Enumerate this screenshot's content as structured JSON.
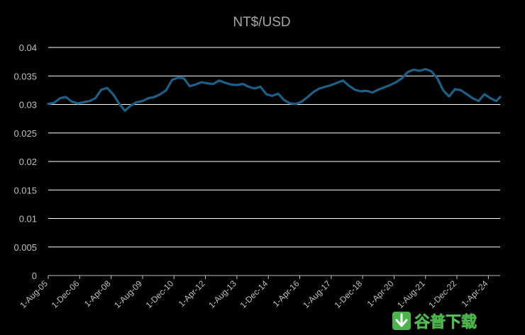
{
  "chart_data": {
    "type": "line",
    "title": "NT$/USD",
    "xlabel": "",
    "ylabel": "",
    "ylim": [
      0,
      0.04
    ],
    "yticks": [
      "0",
      "0.005",
      "0.01",
      "0.015",
      "0.02",
      "0.025",
      "0.03",
      "0.035",
      "0.04"
    ],
    "xticks": [
      "1-Aug-05",
      "1-Dec-06",
      "1-Apr-08",
      "1-Aug-09",
      "1-Dec-10",
      "1-Apr-12",
      "1-Aug-13",
      "1-Dec-14",
      "1-Apr-16",
      "1-Aug-17",
      "1-Dec-18",
      "1-Apr-20",
      "1-Aug-21",
      "1-Dec-22",
      "1-Apr-24"
    ],
    "grid": true,
    "legend": "none",
    "line_color": "#1f5f86",
    "series": [
      {
        "x": [
          "2005-08",
          "2005-11",
          "2006-02",
          "2006-05",
          "2006-08",
          "2006-11",
          "2007-02",
          "2007-05",
          "2007-08",
          "2007-11",
          "2008-02",
          "2008-05",
          "2008-08",
          "2008-11",
          "2009-02",
          "2009-05",
          "2009-08",
          "2009-11",
          "2010-02",
          "2010-05",
          "2010-08",
          "2010-11",
          "2011-02",
          "2011-05",
          "2011-08",
          "2011-11",
          "2012-02",
          "2012-05",
          "2012-08",
          "2012-11",
          "2013-02",
          "2013-05",
          "2013-08",
          "2013-11",
          "2014-02",
          "2014-05",
          "2014-08",
          "2014-11",
          "2015-02",
          "2015-05",
          "2015-08",
          "2015-11",
          "2016-02",
          "2016-05",
          "2016-08",
          "2016-11",
          "2017-02",
          "2017-05",
          "2017-08",
          "2017-11",
          "2018-02",
          "2018-05",
          "2018-08",
          "2018-11",
          "2019-02",
          "2019-05",
          "2019-08",
          "2019-11",
          "2020-02",
          "2020-05",
          "2020-08",
          "2020-11",
          "2021-02",
          "2021-05",
          "2021-08",
          "2021-11",
          "2022-02",
          "2022-05",
          "2022-08",
          "2022-11",
          "2023-02",
          "2023-05",
          "2023-08",
          "2023-11",
          "2024-02",
          "2024-05",
          "2024-08",
          "2024-10"
        ],
        "values": [
          0.0301,
          0.0303,
          0.0311,
          0.0313,
          0.0305,
          0.0302,
          0.0304,
          0.0306,
          0.0311,
          0.0326,
          0.0329,
          0.0318,
          0.0302,
          0.0289,
          0.0298,
          0.0304,
          0.0306,
          0.0311,
          0.0313,
          0.0318,
          0.0325,
          0.0343,
          0.0347,
          0.0346,
          0.0332,
          0.0335,
          0.0339,
          0.0337,
          0.0336,
          0.0342,
          0.0338,
          0.0335,
          0.0334,
          0.0336,
          0.0331,
          0.0328,
          0.0331,
          0.0318,
          0.0315,
          0.0319,
          0.0308,
          0.0302,
          0.0301,
          0.0305,
          0.0313,
          0.0322,
          0.0328,
          0.0331,
          0.0334,
          0.0338,
          0.0342,
          0.0333,
          0.0326,
          0.0323,
          0.0324,
          0.0321,
          0.0326,
          0.033,
          0.0334,
          0.0339,
          0.0346,
          0.0357,
          0.0361,
          0.0359,
          0.0362,
          0.0358,
          0.0346,
          0.0325,
          0.0314,
          0.0327,
          0.0325,
          0.0318,
          0.0311,
          0.0306,
          0.0318,
          0.0311,
          0.0306,
          0.0313
        ]
      }
    ]
  },
  "watermark": {
    "text": "谷普下载",
    "icon": "download-arrow-icon",
    "color": "#4bb54c"
  }
}
